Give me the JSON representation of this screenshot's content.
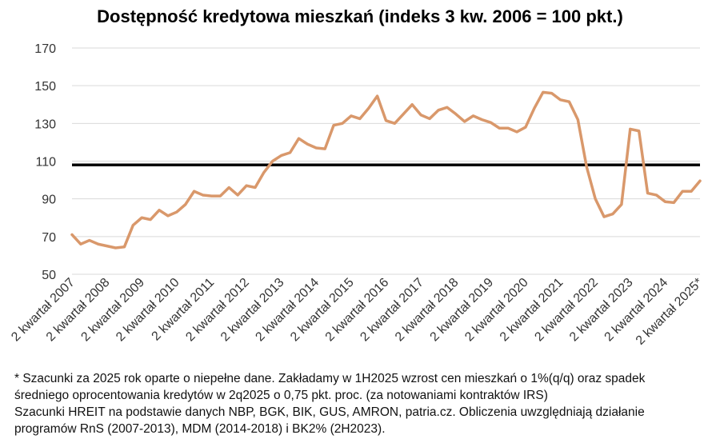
{
  "chart_data": {
    "type": "line",
    "title": "Dostępność kredytowa mieszkań (indeks 3 kw. 2006 = 100 pkt.)",
    "xlabel": "",
    "ylabel": "",
    "ylim": [
      50,
      170
    ],
    "yticks": [
      50,
      70,
      90,
      110,
      130,
      150,
      170
    ],
    "grid": true,
    "reference_line": 108,
    "x_tick_labels": [
      "2 kwartał 2007",
      "2 kwartał 2008",
      "2 kwartał 2009",
      "2 kwartał 2010",
      "2 kwartał 2011",
      "2 kwartał 2012",
      "2 kwartał 2013",
      "2 kwartał 2014",
      "2 kwartał 2015",
      "2 kwartał 2016",
      "2 kwartał 2017",
      "2 kwartał 2018",
      "2 kwartał 2019",
      "2 kwartał 2020",
      "2 kwartał 2021",
      "2 kwartał 2022",
      "2 kwartał 2023",
      "2 kwartał 2024",
      "2 kwartał 2025*"
    ],
    "series_color": "#d9986b",
    "reference_color": "#000000",
    "values": [
      71,
      66,
      68,
      66,
      65,
      64,
      64.5,
      76,
      80,
      79,
      84,
      81,
      83,
      87,
      94,
      92,
      91.5,
      91.5,
      96,
      92,
      97,
      96,
      104,
      110,
      113,
      114.5,
      122,
      119,
      117,
      116.5,
      129,
      130,
      134,
      132.5,
      138,
      144.5,
      131.5,
      130,
      135,
      140,
      134.5,
      132.5,
      137,
      138.5,
      135,
      131,
      134,
      132,
      130.5,
      127.5,
      127.5,
      125.5,
      128,
      138,
      146.5,
      146,
      142.5,
      141.5,
      132,
      107,
      90,
      80.5,
      82,
      87,
      127,
      126,
      93,
      92,
      88.5,
      88,
      94,
      94,
      99.5
    ]
  },
  "footnote": {
    "line1": "* Szacunki za 2025 rok oparte o niepełne dane. Zakładamy w 1H2025 wzrost cen mieszkań o 1%(q/q) oraz spadek",
    "line2": "średniego oprocentowania kredytów w 2q2025 o 0,75 pkt. proc. (za notowaniami kontraktów IRS)",
    "line3": "Szacunki HREIT na podstawie danych NBP, BGK, BIK, GUS, AMRON, patria.cz. Obliczenia uwzględniają działanie",
    "line4": "programów RnS (2007-2013), MDM (2014-2018) i BK2% (2H2023)."
  }
}
